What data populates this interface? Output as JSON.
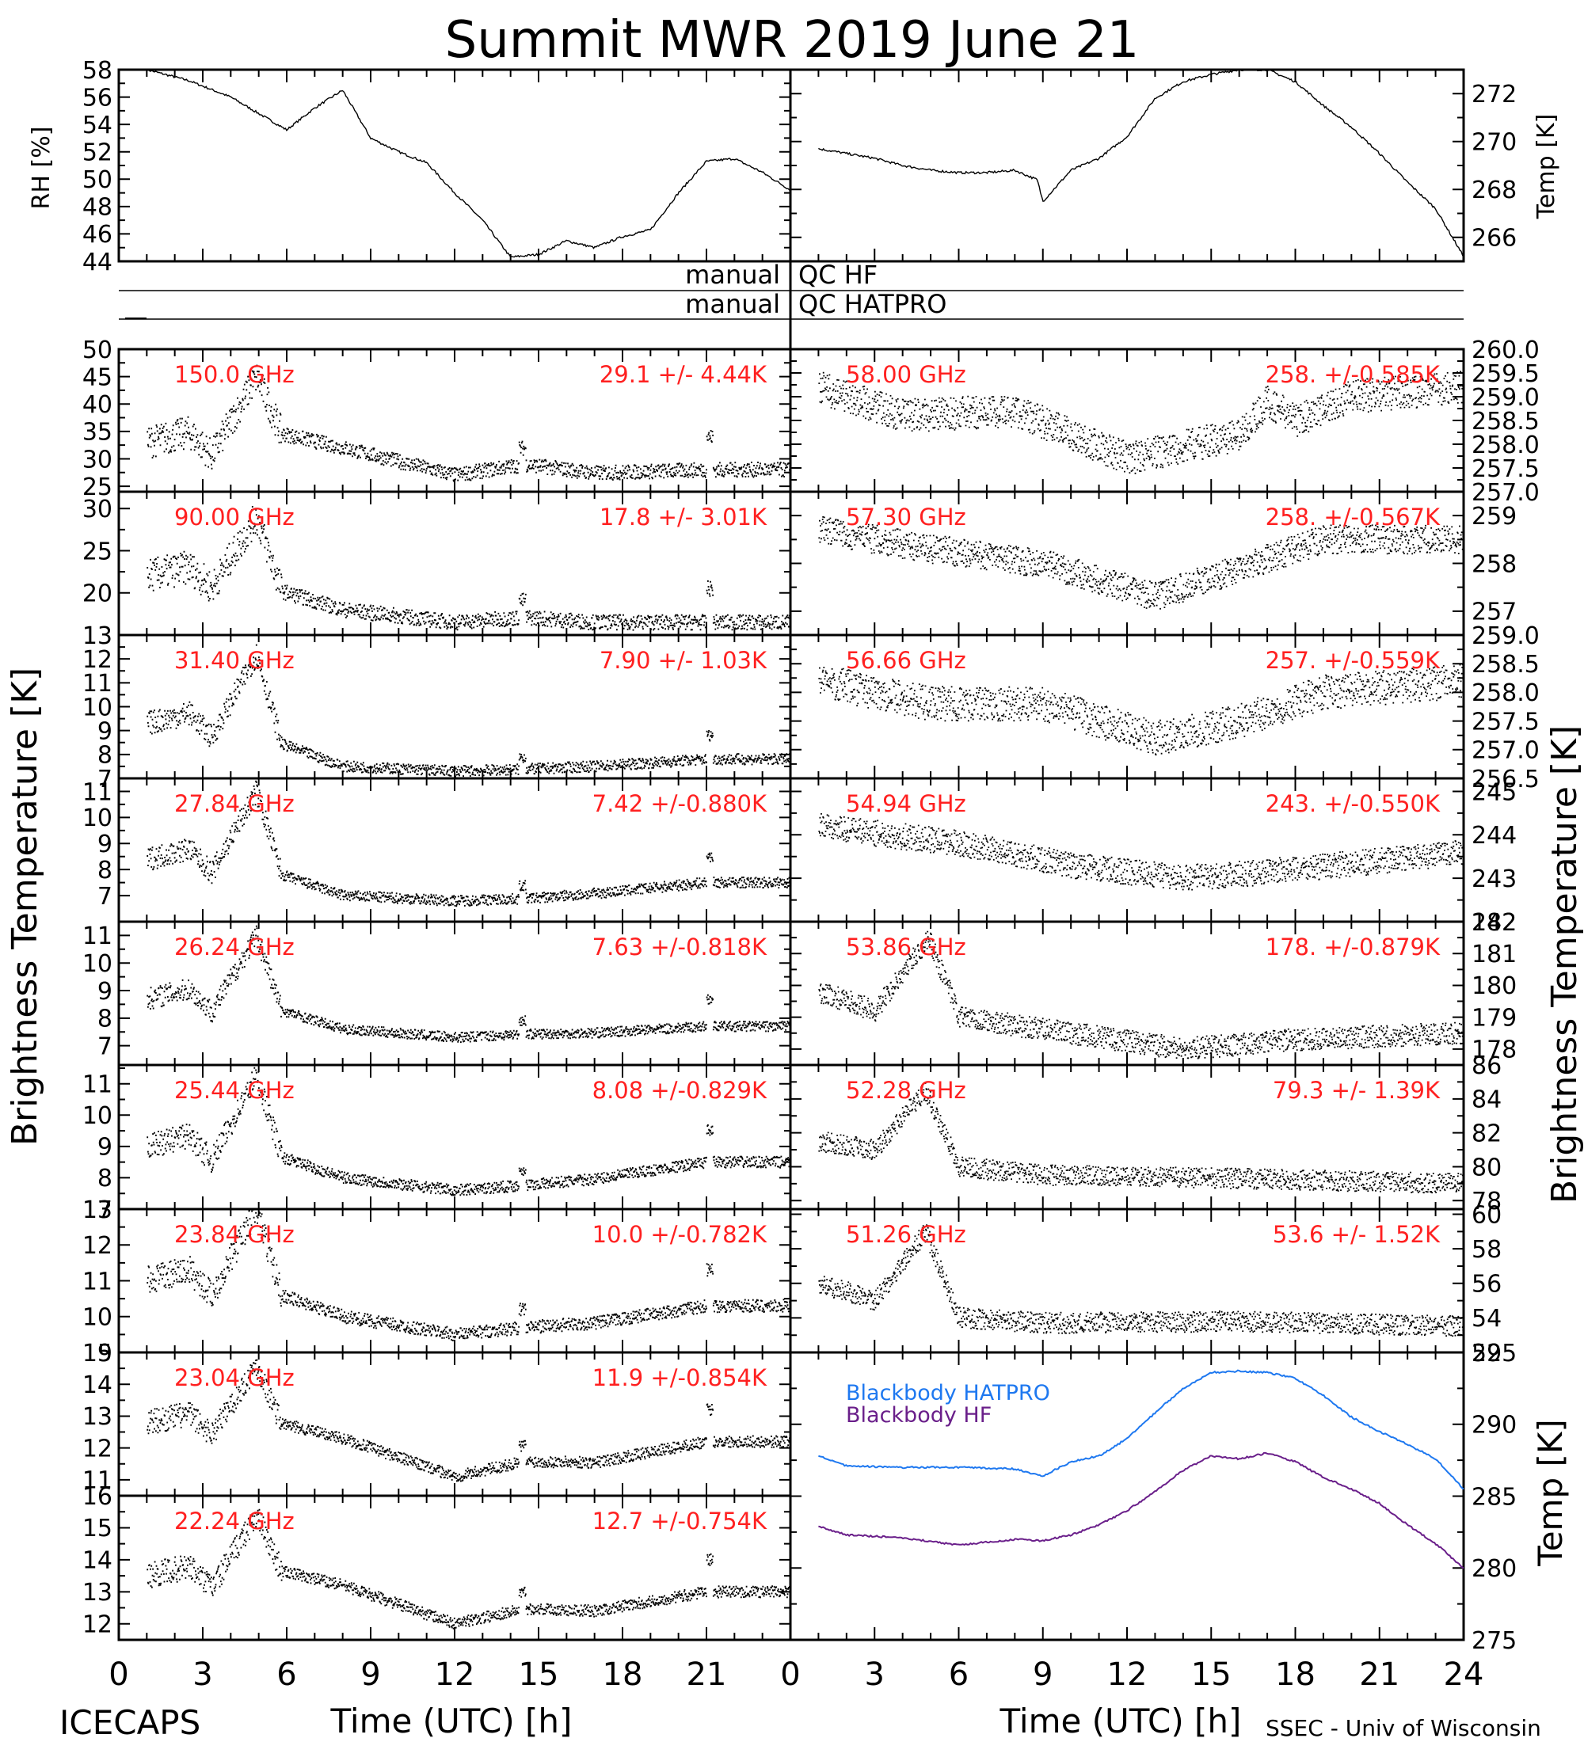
{
  "title": "Summit MWR 2019 June 21",
  "footer_left": "ICECAPS",
  "footer_right": "SSEC - Univ of Wisconsin",
  "colors": {
    "data": "#000000",
    "label": "#ff2020",
    "hatpro": "#1e78f0",
    "hf": "#6a1f8a"
  },
  "qc": {
    "left": [
      "manual",
      "manual"
    ],
    "right": [
      "QC HF",
      "QC HATPRO"
    ]
  },
  "chart_data": {
    "type": "line",
    "x_range": [
      0,
      24
    ],
    "x_ticks": [
      "0",
      "3",
      "6",
      "9",
      "12",
      "15",
      "18",
      "21",
      "",
      "0",
      "3",
      "6",
      "9",
      "12",
      "15",
      "18",
      "21",
      "24"
    ],
    "x_label_left": "Time (UTC) [h]",
    "x_label_right": "Time (UTC) [h]",
    "ylabel_left": "Brightness Temperature [K]",
    "ylabel_right": "Brightness Temperature [K]",
    "met": {
      "rh": {
        "ylabel": "RH [%]",
        "ylim": [
          44,
          58
        ],
        "ticks": [
          "44",
          "46",
          "48",
          "50",
          "52",
          "54",
          "56",
          "58"
        ],
        "x": [
          1,
          2.5,
          4,
          6,
          7,
          8,
          9,
          10,
          11,
          12,
          13,
          14,
          15,
          16,
          17,
          18,
          19,
          20,
          21,
          22,
          23,
          24
        ],
        "y": [
          58,
          57.2,
          56,
          53.6,
          55.2,
          56.5,
          53,
          52,
          51.2,
          49,
          47,
          44.3,
          44.5,
          45.5,
          45,
          45.8,
          46.3,
          49,
          51.3,
          51.5,
          50.5,
          49.2
        ]
      },
      "temp": {
        "ylabel": "Temp [K]",
        "ylim": [
          265,
          273
        ],
        "ticks": [
          "266",
          "268",
          "270",
          "272"
        ],
        "x": [
          1,
          2,
          3,
          4,
          5,
          6,
          7,
          8,
          8.8,
          9,
          10,
          11,
          12,
          13,
          14,
          15,
          16,
          17,
          18,
          19,
          20,
          21,
          22,
          23,
          24
        ],
        "y": [
          269.7,
          269.5,
          269.3,
          269,
          268.8,
          268.7,
          268.7,
          268.8,
          268.4,
          267.5,
          268.8,
          269.3,
          270.2,
          271.8,
          272.5,
          272.8,
          273,
          273,
          272.5,
          271.5,
          270.6,
          269.5,
          268.3,
          267.2,
          265.2
        ]
      }
    },
    "channels_left": [
      {
        "freq": "150.0 GHz",
        "stat": "29.1 +/-  4.44K",
        "ylim": [
          24,
          50
        ],
        "ticks": [
          "25",
          "30",
          "35",
          "40",
          "45",
          "50"
        ],
        "baseline": 33,
        "peak": 45,
        "mid": 32,
        "low": 27,
        "end": 28,
        "noise": 3,
        "spike": 6
      },
      {
        "freq": "90.00 GHz",
        "stat": "17.8 +/-  3.01K",
        "ylim": [
          15,
          32
        ],
        "ticks": [
          "20",
          "25",
          "30"
        ],
        "baseline": 22,
        "peak": 29,
        "mid": 18,
        "low": 16.5,
        "end": 16.5,
        "noise": 2,
        "spike": 4
      },
      {
        "freq": "31.40 GHz",
        "stat": "7.90 +/- 1.03K",
        "ylim": [
          7,
          13
        ],
        "ticks": [
          "7",
          "8",
          "9",
          "10",
          "11",
          "12",
          "13"
        ],
        "baseline": 9.3,
        "peak": 12.2,
        "mid": 7.5,
        "low": 7.3,
        "end": 7.8,
        "noise": 0.5,
        "spike": 1
      },
      {
        "freq": "27.84 GHz",
        "stat": "7.42 +/-0.880K",
        "ylim": [
          6,
          11.5
        ],
        "ticks": [
          "7",
          "8",
          "9",
          "10",
          "11"
        ],
        "baseline": 8.4,
        "peak": 11,
        "mid": 7,
        "low": 6.8,
        "end": 7.5,
        "noise": 0.45,
        "spike": 1
      },
      {
        "freq": "26.24 GHz",
        "stat": "7.63 +/-0.818K",
        "ylim": [
          6.3,
          11.5
        ],
        "ticks": [
          "7",
          "8",
          "9",
          "10",
          "11"
        ],
        "baseline": 8.7,
        "peak": 11,
        "mid": 7.6,
        "low": 7.3,
        "end": 7.7,
        "noise": 0.4,
        "spike": 1
      },
      {
        "freq": "25.44 GHz",
        "stat": "8.08 +/-0.829K",
        "ylim": [
          7,
          11.6
        ],
        "ticks": [
          "7",
          "8",
          "9",
          "10",
          "11"
        ],
        "baseline": 9,
        "peak": 11.3,
        "mid": 8,
        "low": 7.6,
        "end": 8.5,
        "noise": 0.4,
        "spike": 1
      },
      {
        "freq": "23.84 GHz",
        "stat": "10.0 +/-0.782K",
        "ylim": [
          9,
          13
        ],
        "ticks": [
          "9",
          "10",
          "11",
          "12",
          "13"
        ],
        "baseline": 11,
        "peak": 13,
        "mid": 10,
        "low": 9.5,
        "end": 10.3,
        "noise": 0.4,
        "spike": 1
      },
      {
        "freq": "23.04 GHz",
        "stat": "11.9 +/-0.854K",
        "ylim": [
          10.5,
          15
        ],
        "ticks": [
          "11",
          "12",
          "13",
          "14",
          "15"
        ],
        "baseline": 12.8,
        "peak": 14.6,
        "mid": 12.3,
        "low": 11.1,
        "end": 12.2,
        "noise": 0.4,
        "spike": 1
      },
      {
        "freq": "22.24 GHz",
        "stat": "12.7 +/-0.754K",
        "ylim": [
          11.5,
          16
        ],
        "ticks": [
          "12",
          "13",
          "14",
          "15",
          "16"
        ],
        "baseline": 13.5,
        "peak": 15.4,
        "mid": 13.2,
        "low": 12,
        "end": 13,
        "noise": 0.4,
        "spike": 1
      }
    ],
    "channels_right": [
      {
        "freq": "58.00 GHz",
        "stat": "258. +/-0.585K",
        "ylim": [
          257,
          260
        ],
        "ticks": [
          "257.0",
          "257.5",
          "258.0",
          "258.5",
          "259.0",
          "259.5",
          "260.0"
        ],
        "profile": [
          [
            1,
            259.2
          ],
          [
            4,
            258.6
          ],
          [
            8,
            258.7
          ],
          [
            12,
            257.7
          ],
          [
            16,
            258.2
          ],
          [
            17,
            258.9
          ],
          [
            18,
            258.5
          ],
          [
            20,
            259
          ],
          [
            24,
            259.2
          ]
        ],
        "noise": 0.35
      },
      {
        "freq": "57.30 GHz",
        "stat": "258. +/-0.567K",
        "ylim": [
          256.5,
          259.5
        ],
        "ticks": [
          "257",
          "258",
          "259"
        ],
        "profile": [
          [
            1,
            258.7
          ],
          [
            5,
            258.3
          ],
          [
            9,
            258
          ],
          [
            13,
            257.3
          ],
          [
            16,
            257.9
          ],
          [
            19,
            258.5
          ],
          [
            24,
            258.5
          ]
        ],
        "noise": 0.3
      },
      {
        "freq": "56.66 GHz",
        "stat": "257. +/-0.559K",
        "ylim": [
          256.5,
          259
        ],
        "ticks": [
          "256.5",
          "257.0",
          "257.5",
          "258.0",
          "258.5",
          "259.0"
        ],
        "profile": [
          [
            1,
            258.2
          ],
          [
            5,
            257.8
          ],
          [
            9,
            257.8
          ],
          [
            13,
            257.2
          ],
          [
            16,
            257.5
          ],
          [
            19,
            258
          ],
          [
            24,
            258.2
          ]
        ],
        "noise": 0.3
      },
      {
        "freq": "54.94 GHz",
        "stat": "243. +/-0.550K",
        "ylim": [
          242,
          245.3
        ],
        "ticks": [
          "242",
          "243",
          "244",
          "245"
        ],
        "profile": [
          [
            1,
            244.2
          ],
          [
            6,
            243.8
          ],
          [
            10,
            243.3
          ],
          [
            14,
            243
          ],
          [
            18,
            243.2
          ],
          [
            24,
            243.6
          ]
        ],
        "noise": 0.3
      },
      {
        "freq": "53.86 GHz",
        "stat": "178. +/-0.879K",
        "ylim": [
          177.5,
          182
        ],
        "ticks": [
          "178",
          "179",
          "180",
          "181",
          "182"
        ],
        "profile": [
          [
            1,
            179.8
          ],
          [
            3,
            179.2
          ],
          [
            4.9,
            181.5
          ],
          [
            6,
            179
          ],
          [
            10,
            178.5
          ],
          [
            14,
            178
          ],
          [
            18,
            178.3
          ],
          [
            24,
            178.5
          ]
        ],
        "noise": 0.35
      },
      {
        "freq": "52.28 GHz",
        "stat": "79.3 +/-  1.39K",
        "ylim": [
          77.5,
          86
        ],
        "ticks": [
          "78",
          "80",
          "82",
          "84",
          "86"
        ],
        "profile": [
          [
            1,
            81.5
          ],
          [
            3,
            81
          ],
          [
            4.8,
            84.5
          ],
          [
            6,
            80
          ],
          [
            9,
            79.5
          ],
          [
            16,
            79.3
          ],
          [
            24,
            79
          ]
        ],
        "noise": 0.6
      },
      {
        "freq": "51.26 GHz",
        "stat": "53.6 +/-  1.52K",
        "ylim": [
          52,
          60.3
        ],
        "ticks": [
          "52",
          "54",
          "56",
          "58",
          "60"
        ],
        "profile": [
          [
            1,
            56
          ],
          [
            3,
            55
          ],
          [
            4.8,
            59
          ],
          [
            6,
            54
          ],
          [
            9,
            53.7
          ],
          [
            16,
            53.8
          ],
          [
            24,
            53.5
          ]
        ],
        "noise": 0.6
      }
    ],
    "blackbody": {
      "ylabel": "Temp [K]",
      "ylim": [
        275,
        295
      ],
      "ticks": [
        "275",
        "280",
        "285",
        "290",
        "295"
      ],
      "series": [
        {
          "name": "Blackbody HATPRO",
          "x": [
            1,
            2,
            4,
            6,
            8,
            8.5,
            9,
            10,
            11,
            12,
            13,
            14,
            15,
            16,
            17,
            18,
            19,
            20,
            21,
            22,
            23,
            24
          ],
          "y": [
            287.8,
            287.1,
            287,
            287,
            286.9,
            286.6,
            286.4,
            287.4,
            287.8,
            289,
            290.8,
            292.5,
            293.6,
            293.7,
            293.6,
            293.2,
            292,
            290.5,
            289.5,
            288.6,
            287.6,
            285.5
          ]
        },
        {
          "name": "Blackbody HF",
          "x": [
            1,
            2,
            4,
            6,
            8,
            9,
            10,
            11,
            12,
            13,
            14,
            15,
            16,
            17,
            18,
            19,
            20,
            21,
            22,
            23,
            24
          ],
          "y": [
            282.9,
            282.3,
            282.1,
            281.6,
            282,
            281.9,
            282.3,
            283,
            284,
            285.3,
            286.8,
            287.8,
            287.6,
            288,
            287.4,
            286.3,
            285.5,
            284.5,
            283,
            281.7,
            280
          ]
        }
      ]
    }
  }
}
